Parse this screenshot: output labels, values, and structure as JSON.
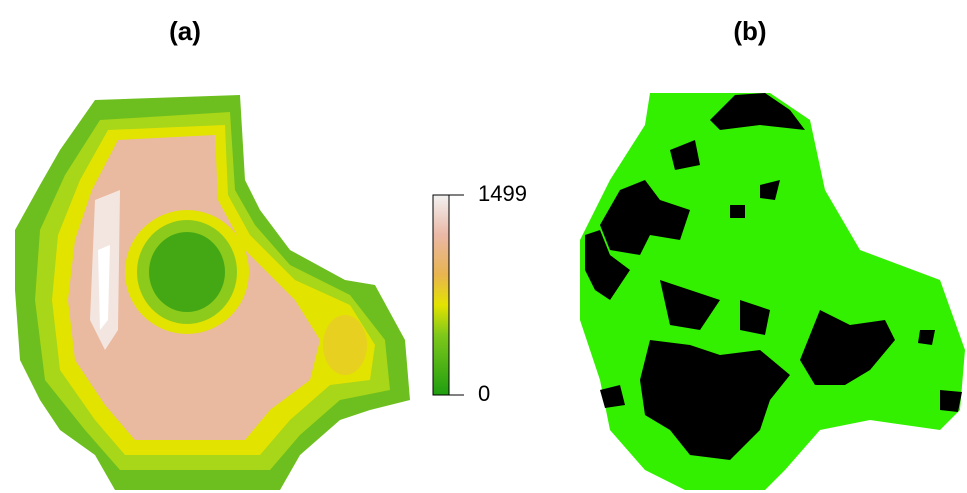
{
  "panels": [
    {
      "title": "(a)"
    },
    {
      "title": "(b)"
    }
  ],
  "colorbar": {
    "lim": [
      0,
      1499
    ],
    "ticks": [
      0,
      1499
    ]
  }
}
